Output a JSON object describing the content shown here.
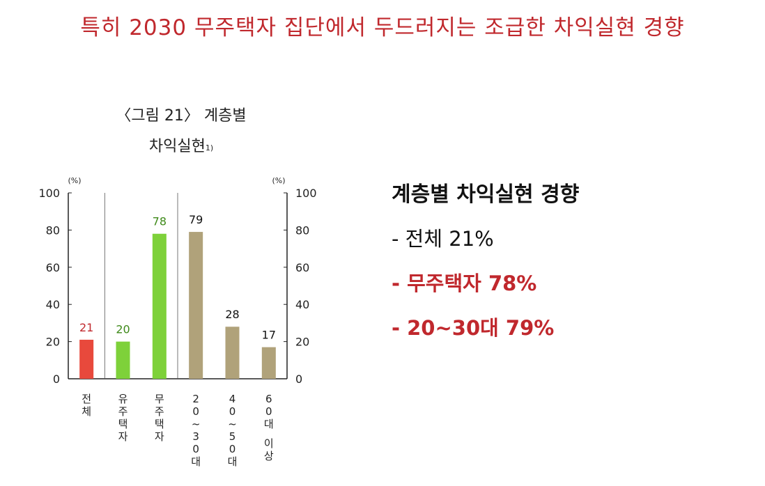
{
  "slide": {
    "title": "특히 2030 무주택자 집단에서 두드러지는 조급한 차익실현 경향"
  },
  "figure": {
    "caption_line1": "〈그림 21〉 계층별",
    "caption_line2": "차익실현",
    "caption_footnote": "1)"
  },
  "chart_data": {
    "type": "bar",
    "categories": [
      "전체",
      "유주택자",
      "무주택자",
      "20~30대",
      "40~50대",
      "60대 이상"
    ],
    "values": [
      21,
      20,
      78,
      79,
      28,
      17
    ],
    "bar_colors": [
      "#e8493c",
      "#7ed13a",
      "#7ed13a",
      "#b0a27a",
      "#b0a27a",
      "#b0a27a"
    ],
    "label_colors": [
      "#c0282d",
      "#3f8a1a",
      "#3f8a1a",
      "#111111",
      "#111111",
      "#111111"
    ],
    "ylim": [
      0,
      100
    ],
    "yticks": [
      0,
      20,
      40,
      60,
      80,
      100
    ],
    "y_unit_left": "(%)",
    "y_unit_right": "(%)",
    "group_dividers_after": [
      0,
      2
    ]
  },
  "summary": {
    "heading": "계층별 차익실현 경향",
    "items": [
      {
        "text": "- 전체 21%",
        "highlight": false
      },
      {
        "text": "- 무주택자 78%",
        "highlight": true
      },
      {
        "text": "- 20~30대 79%",
        "highlight": true
      }
    ]
  }
}
